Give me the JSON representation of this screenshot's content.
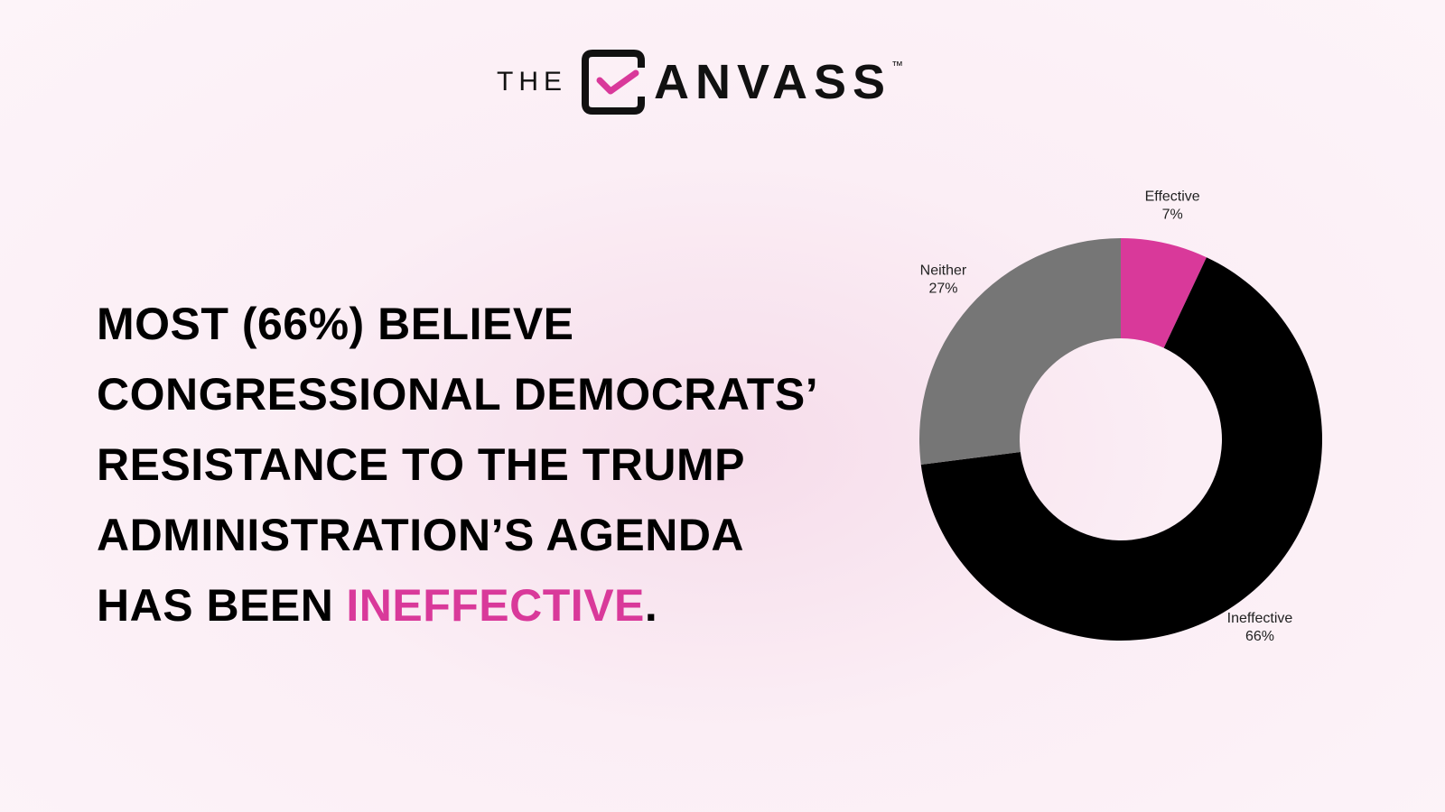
{
  "logo": {
    "prefix": "THE",
    "name": "ANVASS",
    "trademark": "™"
  },
  "headline": {
    "lines": [
      "MOST (66%) BELIEVE",
      "CONGRESSIONAL DEMOCRATS’",
      "RESISTANCE TO THE TRUMP",
      "ADMINISTRATION’S AGENDA"
    ],
    "last_line": "HAS BEEN",
    "highlight": "INEFFECTIVE",
    "end": "."
  },
  "chart_data": {
    "type": "donut",
    "categories": [
      "Effective",
      "Ineffective",
      "Neither"
    ],
    "values": [
      7,
      66,
      27
    ],
    "value_labels": [
      "7%",
      "66%",
      "27%"
    ],
    "colors": [
      "#d9399a",
      "#000000",
      "#767676"
    ]
  }
}
